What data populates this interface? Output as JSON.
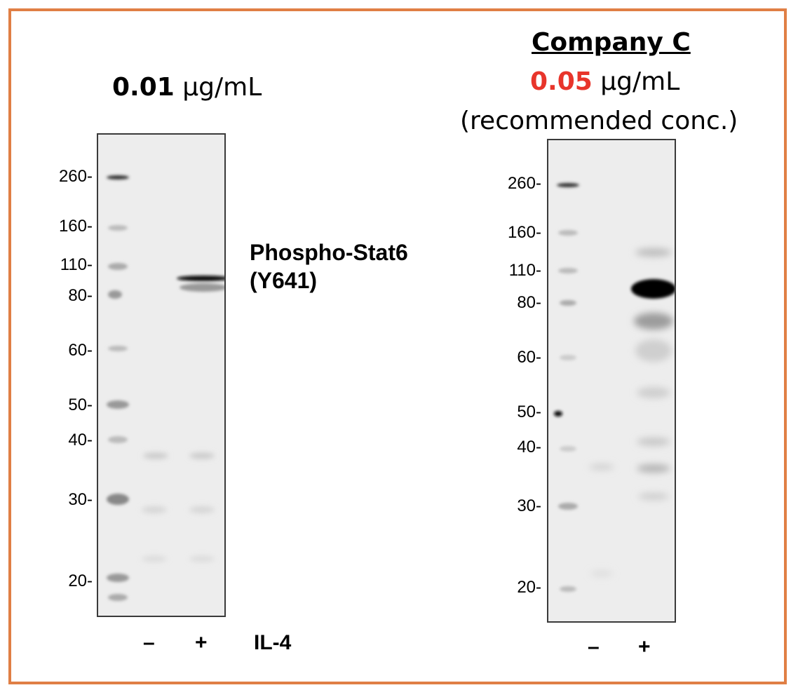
{
  "left_panel": {
    "concentration_value": "0.01",
    "concentration_unit": "μg/mL",
    "mw_markers": [
      "260-",
      "160-",
      "110-",
      "80-",
      "60-",
      "50-",
      "40-",
      "30-",
      "20-"
    ],
    "lanes": [
      "–",
      "+"
    ],
    "treatment_label": "IL-4"
  },
  "antibody_label": {
    "line1": "Phospho-Stat6",
    "line2": "(Y641)"
  },
  "right_panel": {
    "company": "Company C",
    "concentration_value": "0.05",
    "concentration_unit": "μg/mL",
    "note": "(recommended conc.)",
    "mw_markers": [
      "260-",
      "160-",
      "110-",
      "80-",
      "60-",
      "50-",
      "40-",
      "30-",
      "20-"
    ],
    "lanes": [
      "–",
      "+"
    ]
  },
  "colors": {
    "frame": "#e07f45",
    "highlight": "#e8352b"
  }
}
